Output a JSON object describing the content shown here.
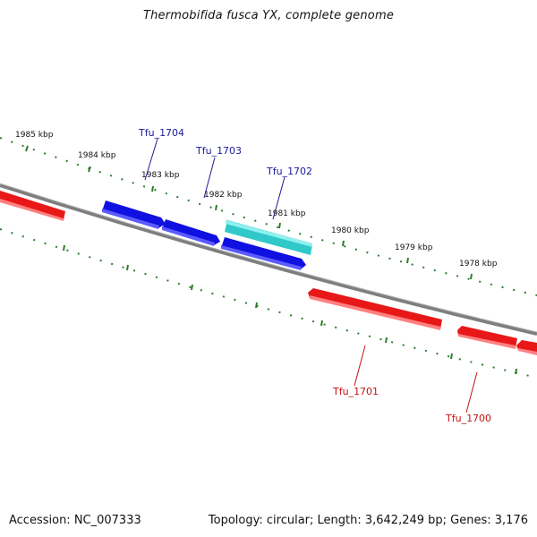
{
  "title": "Thermobifida fusca YX, complete genome",
  "footer": {
    "accession": "Accession: NC_007333",
    "summary": "Topology: circular; Length: 3,642,249 bp; Genes: 3,176"
  },
  "colors": {
    "backbone": "#8a8a8a",
    "tick": "#2e7d2e",
    "forward_gene": "#1010e0",
    "forward_gene_selected": "#30c8c8",
    "reverse_gene": "#e81818",
    "forward_label": "#1a1a9a",
    "reverse_label": "#c81010"
  },
  "kbp_markers": [
    {
      "label": "1985 kbp"
    },
    {
      "label": "1984 kbp"
    },
    {
      "label": "1983 kbp"
    },
    {
      "label": "1982 kbp"
    },
    {
      "label": "1981 kbp"
    },
    {
      "label": "1980 kbp"
    },
    {
      "label": "1979 kbp"
    },
    {
      "label": "1978 kbp"
    }
  ],
  "genes": [
    {
      "name": "Tfu_1704",
      "strand": "forward"
    },
    {
      "name": "Tfu_1703",
      "strand": "forward"
    },
    {
      "name": "Tfu_1702",
      "strand": "forward",
      "highlighted": true
    },
    {
      "name": "Tfu_1701",
      "strand": "reverse"
    },
    {
      "name": "Tfu_1700",
      "strand": "reverse"
    }
  ]
}
